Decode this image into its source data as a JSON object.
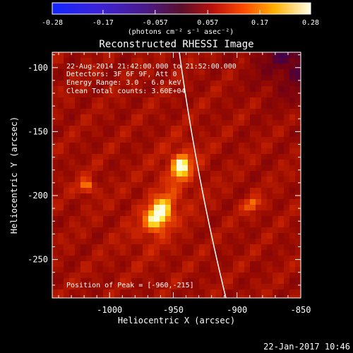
{
  "colorbar": {
    "tick_labels": [
      "-0.28",
      "-0.17",
      "-0.057",
      "0.057",
      "0.17",
      "0.28"
    ],
    "tick_values": [
      -0.28,
      -0.17,
      -0.057,
      0.057,
      0.17,
      0.28
    ],
    "range": [
      -0.28,
      0.28
    ],
    "units_label": "(photons cm⁻² s⁻¹ asec⁻²)"
  },
  "title": "Reconstructed RHESSI Image",
  "info": {
    "time_range": "22-Aug-2014 21:42:00.000 to 21:52:00.000",
    "detectors": "Detectors: 3F 6F 9F, Att 0",
    "energy": "Energy Range: 3.0 - 6.0 keV",
    "clean": "Clean     Total counts: 3.60E+04"
  },
  "peak_text": "Position of Peak = [-960,-215]",
  "x_axis": {
    "label": "Heliocentric X (arcsec)",
    "tick_labels": [
      "-1000",
      "-950",
      "-900",
      "-850"
    ],
    "tick_values": [
      -1000,
      -950,
      -900,
      -850
    ],
    "range": [
      -1045,
      -850
    ]
  },
  "y_axis": {
    "label": "Heliocentric Y (arcsec)",
    "tick_labels": [
      "-100",
      "-150",
      "-200",
      "-250"
    ],
    "tick_values": [
      -100,
      -150,
      -200,
      -250
    ],
    "range": [
      -280,
      -88
    ]
  },
  "footer_date": "22-Jan-2017 10:46",
  "sources": [
    {
      "name": "main-source",
      "x": -961,
      "y": -215,
      "peak": 1.0
    },
    {
      "name": "upper-source",
      "x": -944,
      "y": -177,
      "peak": 0.9
    },
    {
      "name": "left-source",
      "x": -1018,
      "y": -193,
      "peak": 0.5
    },
    {
      "name": "right-source",
      "x": -888,
      "y": -207,
      "peak": 0.45
    }
  ],
  "colors": {
    "background": "#000000",
    "text": "#ffffff",
    "limb_line": "#ffffff"
  }
}
